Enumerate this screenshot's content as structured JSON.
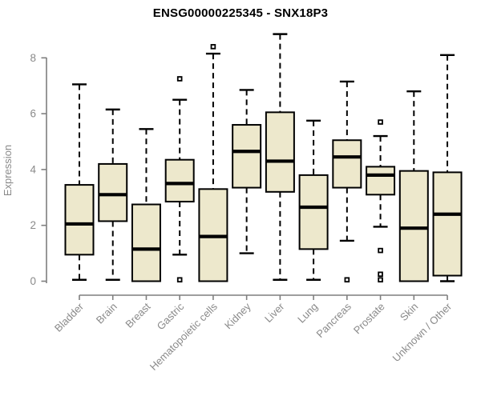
{
  "title": "ENSG00000225345 - SNX18P3",
  "chart_data": {
    "type": "boxplot",
    "title": "ENSG00000225345 - SNX18P3",
    "xlabel": "",
    "ylabel": "Expression",
    "ylim": [
      0,
      8.9
    ],
    "yticks": [
      0,
      2,
      4,
      6,
      8
    ],
    "grid": false,
    "legend": "none",
    "categories": [
      "Bladder",
      "Brain",
      "Breast",
      "Gastric",
      "Hematopoietic cells",
      "Kidney",
      "Liver",
      "Lung",
      "Pancreas",
      "Prostate",
      "Skin",
      "Unknown / Other"
    ],
    "boxes": [
      {
        "category": "Bladder",
        "min": 0.05,
        "q1": 0.95,
        "median": 2.05,
        "q3": 3.45,
        "max": 7.05,
        "outliers": []
      },
      {
        "category": "Brain",
        "min": 0.05,
        "q1": 2.15,
        "median": 3.1,
        "q3": 4.2,
        "max": 6.15,
        "outliers": []
      },
      {
        "category": "Breast",
        "min": 0.0,
        "q1": 0.0,
        "median": 1.15,
        "q3": 2.75,
        "max": 5.45,
        "outliers": []
      },
      {
        "category": "Gastric",
        "min": 0.95,
        "q1": 2.85,
        "median": 3.5,
        "q3": 4.35,
        "max": 6.5,
        "outliers": [
          7.25,
          0.05
        ]
      },
      {
        "category": "Hematopoietic cells",
        "min": 0.0,
        "q1": 0.0,
        "median": 1.6,
        "q3": 3.3,
        "max": 8.15,
        "outliers": [
          8.4
        ]
      },
      {
        "category": "Kidney",
        "min": 1.0,
        "q1": 3.35,
        "median": 4.65,
        "q3": 5.6,
        "max": 6.85,
        "outliers": []
      },
      {
        "category": "Liver",
        "min": 0.05,
        "q1": 3.2,
        "median": 4.3,
        "q3": 6.05,
        "max": 8.85,
        "outliers": []
      },
      {
        "category": "Lung",
        "min": 0.05,
        "q1": 1.15,
        "median": 2.65,
        "q3": 3.8,
        "max": 5.75,
        "outliers": []
      },
      {
        "category": "Pancreas",
        "min": 1.45,
        "q1": 3.35,
        "median": 4.45,
        "q3": 5.05,
        "max": 7.15,
        "outliers": [
          0.05
        ]
      },
      {
        "category": "Prostate",
        "min": 1.95,
        "q1": 3.1,
        "median": 3.8,
        "q3": 4.1,
        "max": 5.2,
        "outliers": [
          5.7,
          1.1,
          0.25,
          0.05
        ]
      },
      {
        "category": "Skin",
        "min": 0.0,
        "q1": 0.0,
        "median": 1.9,
        "q3": 3.95,
        "max": 6.8,
        "outliers": []
      },
      {
        "category": "Unknown / Other",
        "min": 0.0,
        "q1": 0.2,
        "median": 2.4,
        "q3": 3.9,
        "max": 8.1,
        "outliers": []
      }
    ],
    "colors": {
      "box_fill": "#ede8cc",
      "box_border": "#000000",
      "median": "#000000",
      "whisker": "#000000",
      "axis_line": "#7f7f7f",
      "axis_text": "#8a8a8a",
      "title_text": "#000000",
      "background": "#ffffff"
    }
  }
}
